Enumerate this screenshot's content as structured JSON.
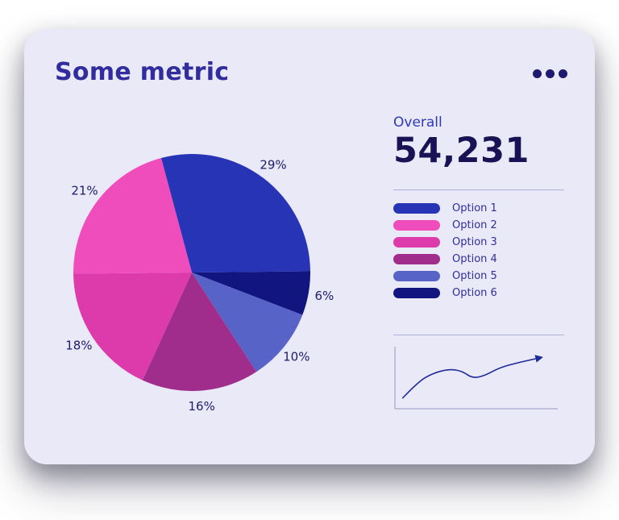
{
  "card": {
    "title": "Some metric",
    "menu": {
      "icon": "ellipsis-icon"
    }
  },
  "overall": {
    "label": "Overall",
    "value": "54,231"
  },
  "chart_data": [
    {
      "type": "pie",
      "title": "Some metric",
      "labels": [
        "Option 1",
        "Option 2",
        "Option 3",
        "Option 4",
        "Option 5",
        "Option 6"
      ],
      "values": [
        29,
        21,
        18,
        16,
        10,
        6
      ],
      "value_unit": "%",
      "slice_labels": [
        "29%",
        "21%",
        "18%",
        "16%",
        "10%",
        "6%"
      ],
      "colors": [
        "#2834b6",
        "#ef4dbc",
        "#dd3aac",
        "#a02c8b",
        "#5763c7",
        "#10157f"
      ],
      "start_angle_from_top_deg": -15,
      "clockwise_draw_order": [
        0,
        5,
        4,
        3,
        2,
        1
      ],
      "label_color": "#1f1b6b",
      "legend_position": "right"
    },
    {
      "type": "line",
      "title": "",
      "description": "unlabeled trend sparkline with left/bottom axis lines and arrow at line end",
      "points_normalized": [
        [
          0.02,
          0.93
        ],
        [
          0.12,
          0.62
        ],
        [
          0.22,
          0.45
        ],
        [
          0.33,
          0.37
        ],
        [
          0.41,
          0.41
        ],
        [
          0.48,
          0.55
        ],
        [
          0.56,
          0.5
        ],
        [
          0.66,
          0.34
        ],
        [
          0.79,
          0.24
        ],
        [
          0.93,
          0.15
        ]
      ],
      "line_color": "#1e2a99",
      "axis_color": "#9296c2",
      "arrow_end": true,
      "grid": false
    }
  ],
  "legend": {
    "items": [
      {
        "label": "Option 1",
        "color": "#2834b6"
      },
      {
        "label": "Option 2",
        "color": "#ef4dbc"
      },
      {
        "label": "Option 3",
        "color": "#dd3aac"
      },
      {
        "label": "Option 4",
        "color": "#a02c8b"
      },
      {
        "label": "Option 5",
        "color": "#5763c7"
      },
      {
        "label": "Option 6",
        "color": "#10157f"
      }
    ]
  },
  "colors": {
    "card_bg": "#eae9f8",
    "title": "#312d9e",
    "overall_label": "#2e3ab9",
    "overall_value": "#191254",
    "divider": "#b0b2d8",
    "legend_label": "#312d9e",
    "pie_label": "#1f1b6b"
  }
}
